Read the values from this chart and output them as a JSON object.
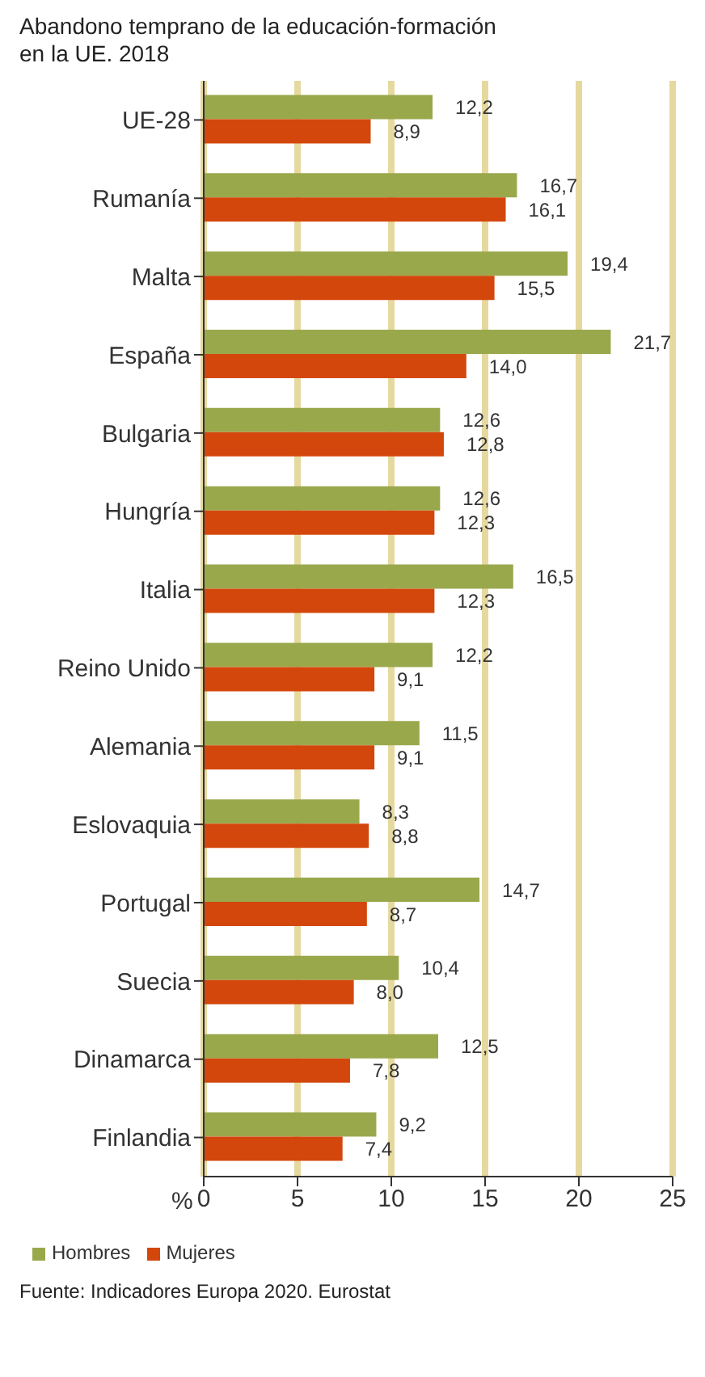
{
  "chart_data": {
    "type": "bar",
    "orientation": "horizontal",
    "title": "Abandono temprano de la educación-formación en la UE. 2018",
    "xlabel": "%",
    "categories": [
      "UE-28",
      "Rumanía",
      "Malta",
      "España",
      "Bulgaria",
      "Hungría",
      "Italia",
      "Reino Unido",
      "Alemania",
      "Eslovaquia",
      "Portugal",
      "Suecia",
      "Dinamarca",
      "Finlandia"
    ],
    "series": [
      {
        "name": "Hombres",
        "color": "#9aa84c",
        "values": [
          12.2,
          16.7,
          19.4,
          21.7,
          12.6,
          12.6,
          16.5,
          12.2,
          11.5,
          8.3,
          14.7,
          10.4,
          12.5,
          9.2
        ],
        "value_labels": [
          "12,2",
          "16,7",
          "19,4",
          "21,7",
          "12,6",
          "12,6",
          "16,5",
          "12,2",
          "11,5",
          "8,3",
          "14,7",
          "10,4",
          "12,5",
          "9,2"
        ]
      },
      {
        "name": "Mujeres",
        "color": "#d4470c",
        "values": [
          8.9,
          16.1,
          15.5,
          14.0,
          12.8,
          12.3,
          12.3,
          9.1,
          9.1,
          8.8,
          8.7,
          8.0,
          7.8,
          7.4
        ],
        "value_labels": [
          "8,9",
          "16,1",
          "15,5",
          "14,0",
          "12,8",
          "12,3",
          "12,3",
          "9,1",
          "9,1",
          "8,8",
          "8,7",
          "8,0",
          "7,8",
          "7,4"
        ]
      }
    ],
    "xlim": [
      0,
      25
    ],
    "xticks": [
      0,
      5,
      10,
      15,
      20,
      25
    ],
    "grid": "x",
    "legend": "bottom left",
    "annotations": [
      "Fuente: Indicadores Europa 2020. Eurostat"
    ]
  }
}
